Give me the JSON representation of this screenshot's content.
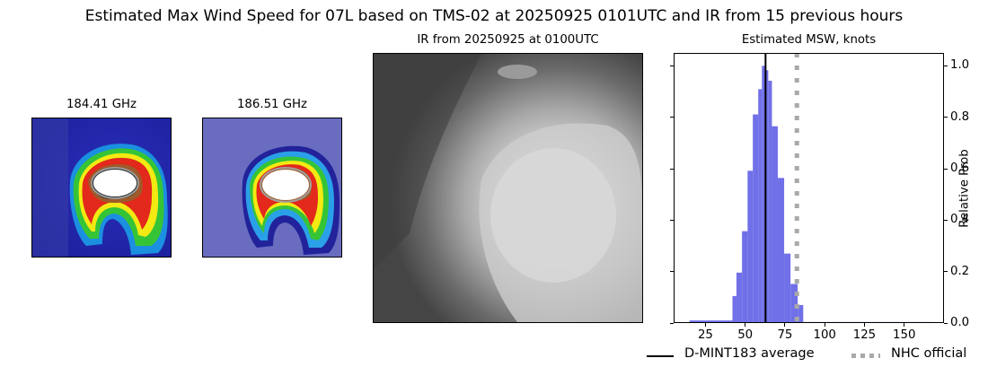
{
  "figure": {
    "title": "Estimated Max Wind Speed for 07L based on TMS-02 at 20250925 0101UTC and IR from 15 previous hours"
  },
  "panels": {
    "mw1": {
      "title": "184.41 GHz"
    },
    "mw2": {
      "title": "186.51 GHz"
    },
    "ir": {
      "title": "IR from 20250925 at 0100UTC"
    },
    "hist": {
      "title": "Estimated MSW, knots"
    }
  },
  "legend": {
    "items": [
      {
        "label": "D-MINT183 average",
        "style": "solid",
        "color": "#000000"
      },
      {
        "label": "NHC official",
        "style": "dotted",
        "color": "#a9a9a9"
      }
    ]
  },
  "colors": {
    "bar": "#7070e8",
    "mean_line": "#000000",
    "nhc_line": "#a9a9a9"
  },
  "chart_data": {
    "type": "bar",
    "title": "Estimated MSW, knots",
    "xlabel": "",
    "ylabel": "Relative Prob",
    "xlim": [
      5,
      175
    ],
    "ylim": [
      0,
      1.05
    ],
    "xticks": [
      25,
      50,
      75,
      100,
      125,
      150
    ],
    "yticks": [
      0.0,
      0.2,
      0.4,
      0.6,
      0.8,
      1.0
    ],
    "ytick_labels": [
      "0.0",
      "0.2",
      "0.4",
      "0.6",
      "0.8",
      "1.0"
    ],
    "y_axis_position": "right",
    "grid": false,
    "legend_position": "bottom",
    "bins": [
      {
        "x0": 15.0,
        "x1": 42.0,
        "value": 0.01
      },
      {
        "x0": 42.0,
        "x1": 44.5,
        "value": 0.105
      },
      {
        "x0": 44.5,
        "x1": 48.0,
        "value": 0.196
      },
      {
        "x0": 48.0,
        "x1": 51.5,
        "value": 0.357
      },
      {
        "x0": 51.5,
        "x1": 54.8,
        "value": 0.592
      },
      {
        "x0": 54.8,
        "x1": 58.2,
        "value": 0.811
      },
      {
        "x0": 58.2,
        "x1": 60.5,
        "value": 0.909
      },
      {
        "x0": 60.5,
        "x1": 62.6,
        "value": 1.0
      },
      {
        "x0": 62.6,
        "x1": 64.5,
        "value": 0.983
      },
      {
        "x0": 64.5,
        "x1": 66.8,
        "value": 0.942
      },
      {
        "x0": 66.8,
        "x1": 70.5,
        "value": 0.765
      },
      {
        "x0": 70.5,
        "x1": 74.5,
        "value": 0.564
      },
      {
        "x0": 74.5,
        "x1": 78.5,
        "value": 0.27
      },
      {
        "x0": 78.5,
        "x1": 83.0,
        "value": 0.152
      },
      {
        "x0": 83.0,
        "x1": 86.5,
        "value": 0.07
      },
      {
        "x0": 86.5,
        "x1": 169.0,
        "value": 0.004
      }
    ],
    "vlines": [
      {
        "name": "D-MINT183 average",
        "x": 62.8,
        "style": "solid",
        "color": "#000000"
      },
      {
        "name": "NHC official",
        "x": 82.5,
        "style": "dotted",
        "color": "#a9a9a9"
      }
    ]
  }
}
